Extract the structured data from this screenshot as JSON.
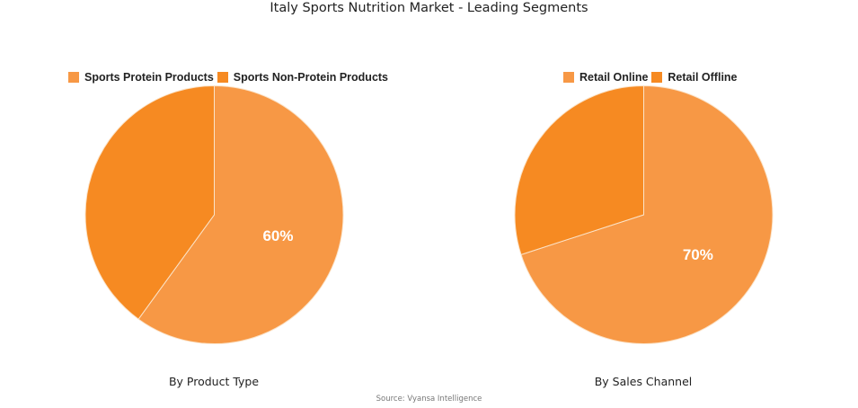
{
  "title": "Italy Sports Nutrition Market - Leading Segments",
  "source": "Source: Vyansa Intelligence",
  "colors": {
    "primary_slice": "#F79845",
    "secondary_slice": "#F68A22",
    "label": "#ffffff",
    "divider": "#FBE3C8"
  },
  "charts": [
    {
      "subtitle": "By Product Type",
      "legend": [
        "Sports Protein Products",
        "Sports Non-Protein Products"
      ],
      "slices": [
        {
          "name": "Sports Protein Products",
          "value": 60,
          "label": "60%"
        },
        {
          "name": "Sports Non-Protein Products",
          "value": 40,
          "label": ""
        }
      ]
    },
    {
      "subtitle": "By Sales Channel",
      "legend": [
        "Retail Online",
        "Retail Offline"
      ],
      "slices": [
        {
          "name": "Retail Online",
          "value": 70,
          "label": "70%"
        },
        {
          "name": "Retail Offline",
          "value": 30,
          "label": ""
        }
      ]
    }
  ],
  "chart_data": [
    {
      "type": "pie",
      "title": "Italy Sports Nutrition Market - Leading Segments",
      "subtitle": "By Product Type",
      "categories": [
        "Sports Protein Products",
        "Sports Non-Protein Products"
      ],
      "values": [
        60,
        40
      ],
      "data_labels": [
        "60%",
        ""
      ],
      "legend_position": "top",
      "start_angle": "12 o'clock, clockwise"
    },
    {
      "type": "pie",
      "title": "Italy Sports Nutrition Market - Leading Segments",
      "subtitle": "By Sales Channel",
      "categories": [
        "Retail Online",
        "Retail Offline"
      ],
      "values": [
        70,
        30
      ],
      "data_labels": [
        "70%",
        ""
      ],
      "legend_position": "top",
      "start_angle": "12 o'clock, clockwise"
    }
  ]
}
